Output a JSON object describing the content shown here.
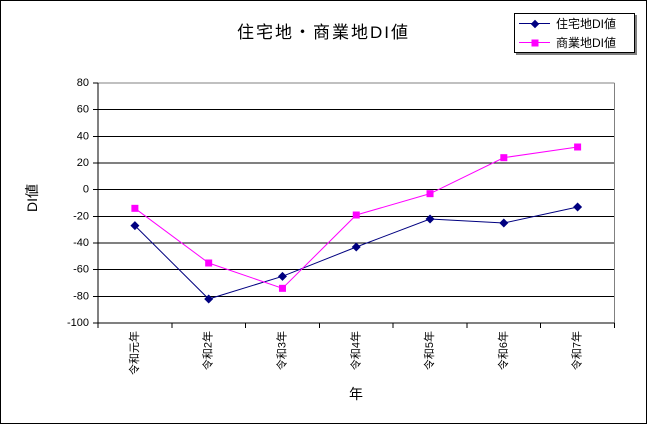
{
  "chart_data": {
    "type": "line",
    "title": "住宅地・商業地DI値",
    "xlabel": "年",
    "ylabel": "DI値",
    "categories": [
      "令和元年",
      "令和2年",
      "令和3年",
      "令和4年",
      "令和5年",
      "令和6年",
      "令和7年"
    ],
    "series": [
      {
        "id": "residential",
        "name": "住宅地DI値",
        "marker": "diamond",
        "color": "#000080",
        "values": [
          -27,
          -82,
          -65,
          -43,
          -22,
          -25,
          -13
        ]
      },
      {
        "id": "commercial",
        "name": "商業地DI値",
        "marker": "square",
        "color": "#FF00FF",
        "values": [
          -14,
          -55,
          -74,
          -19,
          -3,
          24,
          32
        ]
      }
    ],
    "ylim": [
      -100,
      80
    ],
    "ytick_step": 20,
    "yticks": [
      80,
      60,
      40,
      20,
      0,
      -20,
      -40,
      -60,
      -80,
      -100
    ],
    "grid": true,
    "legend_position": "top-right",
    "colors": {
      "gridline": "#000000",
      "axis": "#000000",
      "plot_border": "#808080",
      "background": "#FFFFFF"
    }
  }
}
